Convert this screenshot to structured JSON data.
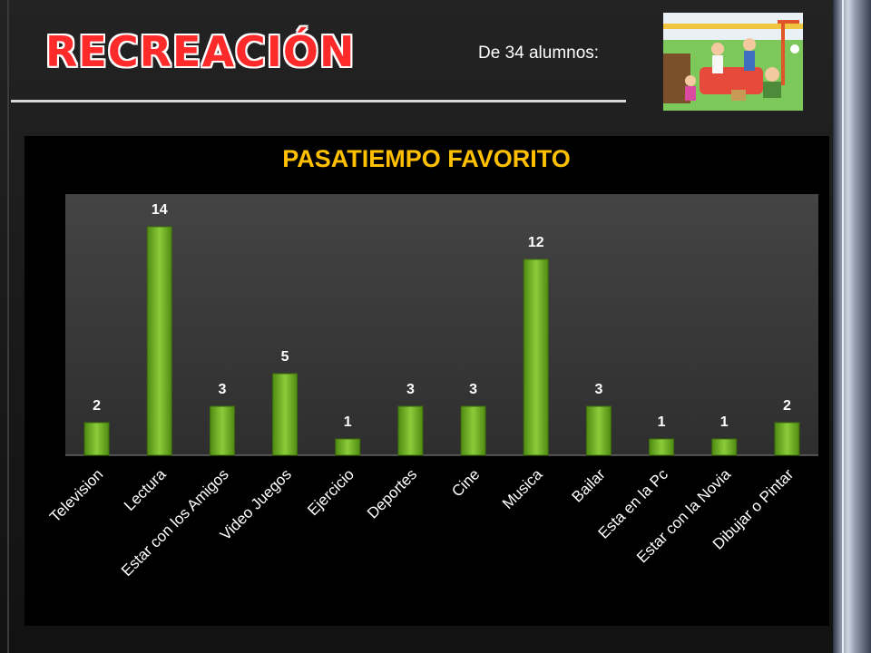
{
  "slide": {
    "title": "RECREACIÓN",
    "subtitle": "De 34 alumnos:",
    "photo_icon": "people-playing-in-park-illustration"
  },
  "colors": {
    "title_red": "#ff2a2a",
    "chart_title_yellow": "#ffc000",
    "bar_green": "#6aa81e",
    "plot_bg": "#3a3a3a"
  },
  "chart_data": {
    "type": "bar",
    "title": "PASATIEMPO FAVORITO",
    "categories": [
      "Television",
      "Lectura",
      "Estar con los Amigos",
      "Video Juegos",
      "Ejercicio",
      "Deportes",
      "Cine",
      "Musica",
      "Bailar",
      "Esta en la Pc",
      "Estar con la Novia",
      "Dibujar o Pintar"
    ],
    "values": [
      2,
      14,
      3,
      5,
      1,
      3,
      3,
      12,
      3,
      1,
      1,
      2
    ],
    "ylim": [
      0,
      16
    ],
    "grid": false,
    "legend": "none",
    "data_labels": true
  }
}
